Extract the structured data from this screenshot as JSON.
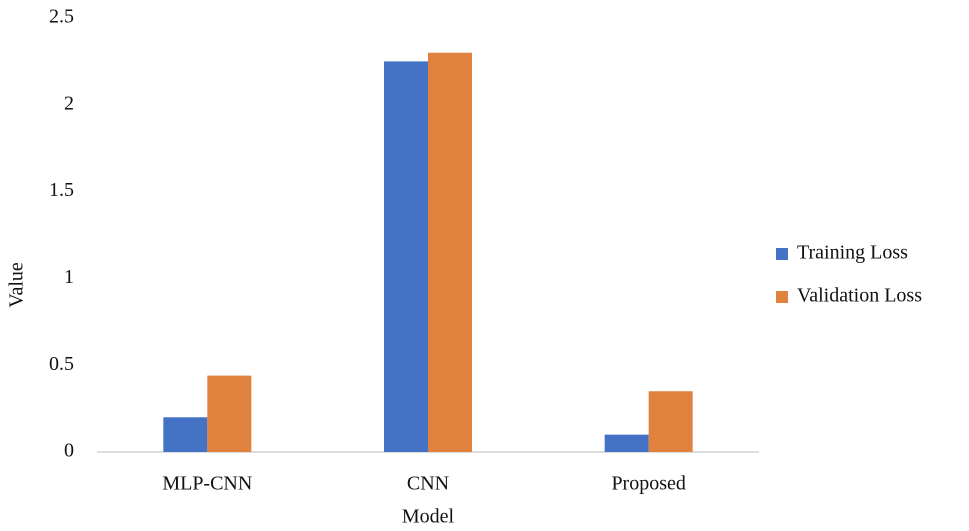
{
  "chart_data": {
    "type": "bar",
    "x_label": "Model",
    "y_label": "Value",
    "categories": [
      "MLP-CNN",
      "CNN",
      "Proposed"
    ],
    "series": [
      {
        "name": "Training Loss",
        "color": "#4472c4",
        "values": [
          0.2,
          2.25,
          0.1
        ]
      },
      {
        "name": "Validation Loss",
        "color": "#e0823e",
        "values": [
          0.44,
          2.3,
          0.35
        ]
      }
    ],
    "ylim": [
      0,
      2.5
    ],
    "yticks": [
      0,
      0.5,
      1,
      1.5,
      2,
      2.5
    ],
    "grid": false,
    "legend": "right"
  }
}
